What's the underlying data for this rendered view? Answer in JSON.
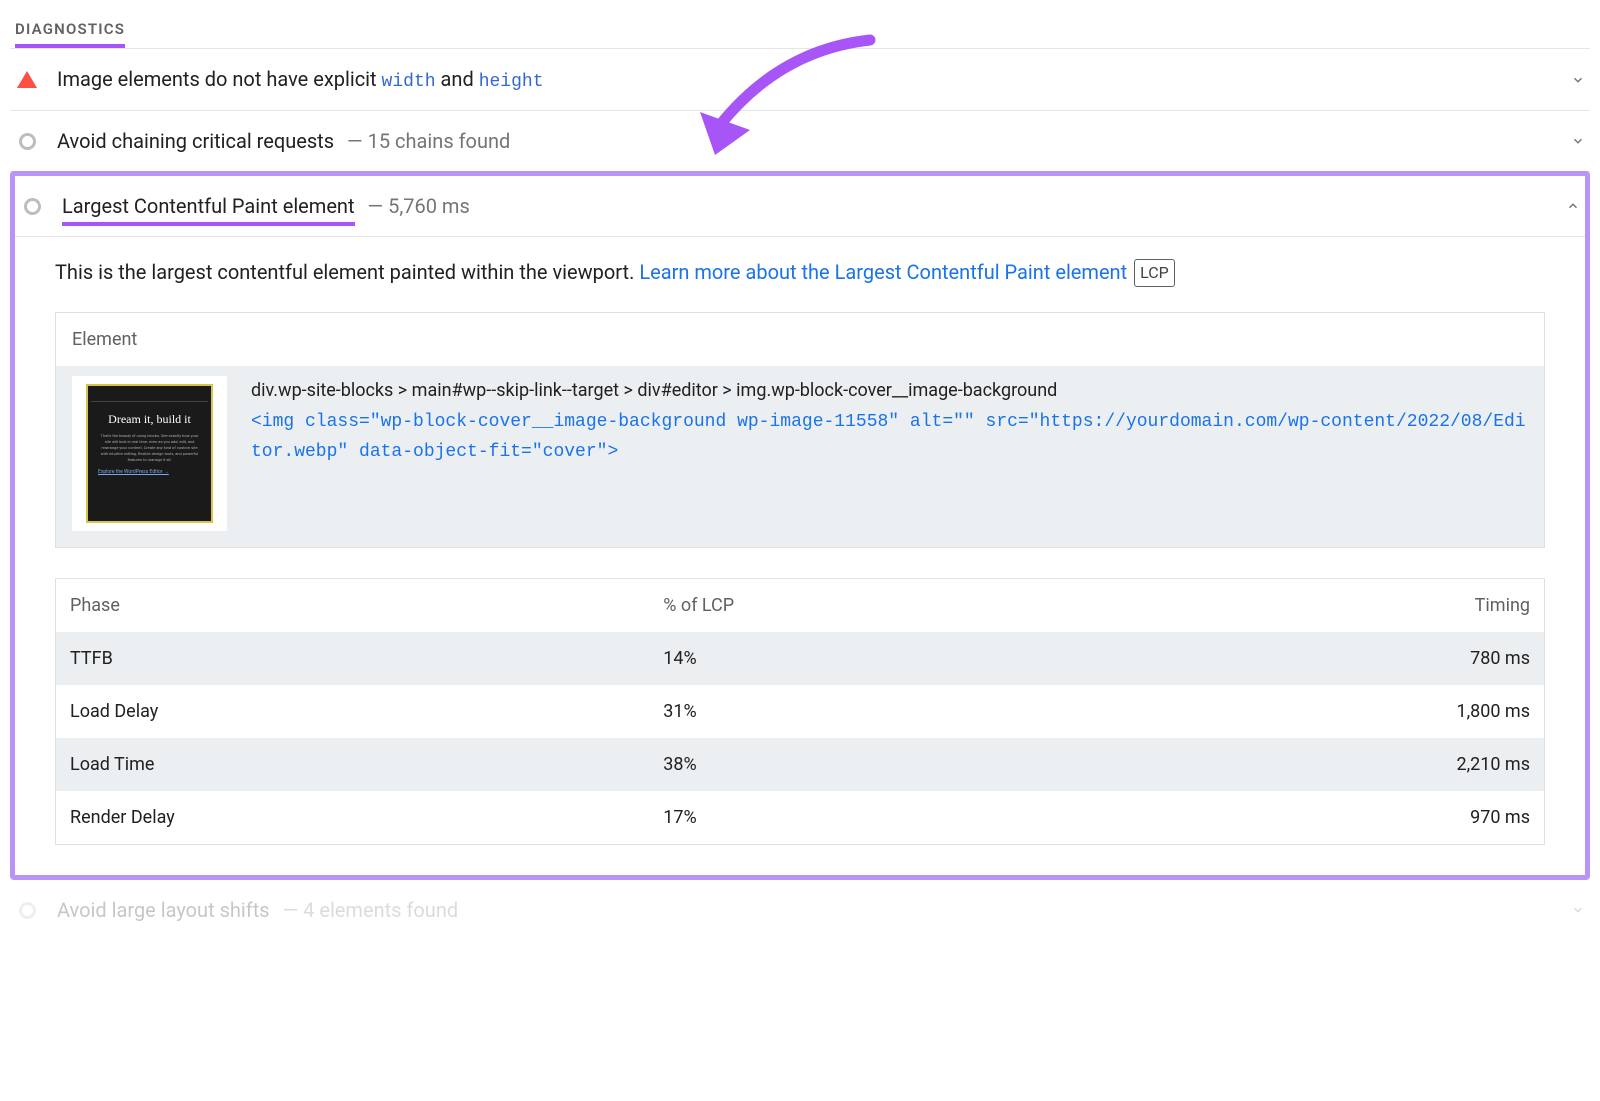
{
  "section_header": "DIAGNOSTICS",
  "audits": [
    {
      "icon": "triangle-red",
      "title_parts": [
        "Image elements do not have explicit ",
        "width",
        " and ",
        "height"
      ],
      "meta": "",
      "chevron": "down"
    },
    {
      "icon": "circle-gray",
      "title_parts": [
        "Avoid chaining critical requests"
      ],
      "meta": "— 15 chains found",
      "chevron": "down"
    }
  ],
  "expanded_audit": {
    "icon": "circle-gray",
    "title": "Largest Contentful Paint element",
    "meta": "— 5,760 ms",
    "chevron": "up",
    "description_text": "This is the largest contentful element painted within the viewport. ",
    "description_link": "Learn more about the Largest Contentful Paint element",
    "badge": "LCP",
    "element_header": "Element",
    "thumbnail": {
      "title": "Dream it, build it",
      "body": "That's the beauty of using blocks. See exactly how your site will look in real time, even as you add, edit, and rearrange your content. Create any kind of custom site with intuitive editing, flexible design tools, and powerful features to manage it all.",
      "link": "Explore the WordPress Editor →"
    },
    "dom_path": "div.wp-site-blocks > main#wp--skip-link--target > div#editor > img.wp-block-cover__image-background",
    "code_snippet": "<img class=\"wp-block-cover__image-background wp-image-11558\" alt=\"\" src=\"https://yourdomain.com/wp-content/2022/08/Editor.webp\" data-object-fit=\"cover\">",
    "phase_table": {
      "columns": [
        "Phase",
        "% of LCP",
        "Timing"
      ],
      "rows": [
        {
          "phase": "TTFB",
          "pct": "14%",
          "timing": "780 ms",
          "striped": true
        },
        {
          "phase": "Load Delay",
          "pct": "31%",
          "timing": "1,800 ms",
          "striped": false
        },
        {
          "phase": "Load Time",
          "pct": "38%",
          "timing": "2,210 ms",
          "striped": true
        },
        {
          "phase": "Render Delay",
          "pct": "17%",
          "timing": "970 ms",
          "striped": false
        }
      ]
    }
  },
  "faded_audit": {
    "icon": "circle-gray",
    "title": "Avoid large layout shifts",
    "meta": "— 4 elements found",
    "chevron": "down"
  },
  "colors": {
    "purple_underline": "#a855f7",
    "purple_border": "#b794f6",
    "link_blue": "#1a73e8",
    "code_blue": "#3367d6",
    "red": "#ff4e42",
    "gray_text": "#757575",
    "gray_icon": "#bdbdbd",
    "card_bg": "#ebeff2"
  }
}
